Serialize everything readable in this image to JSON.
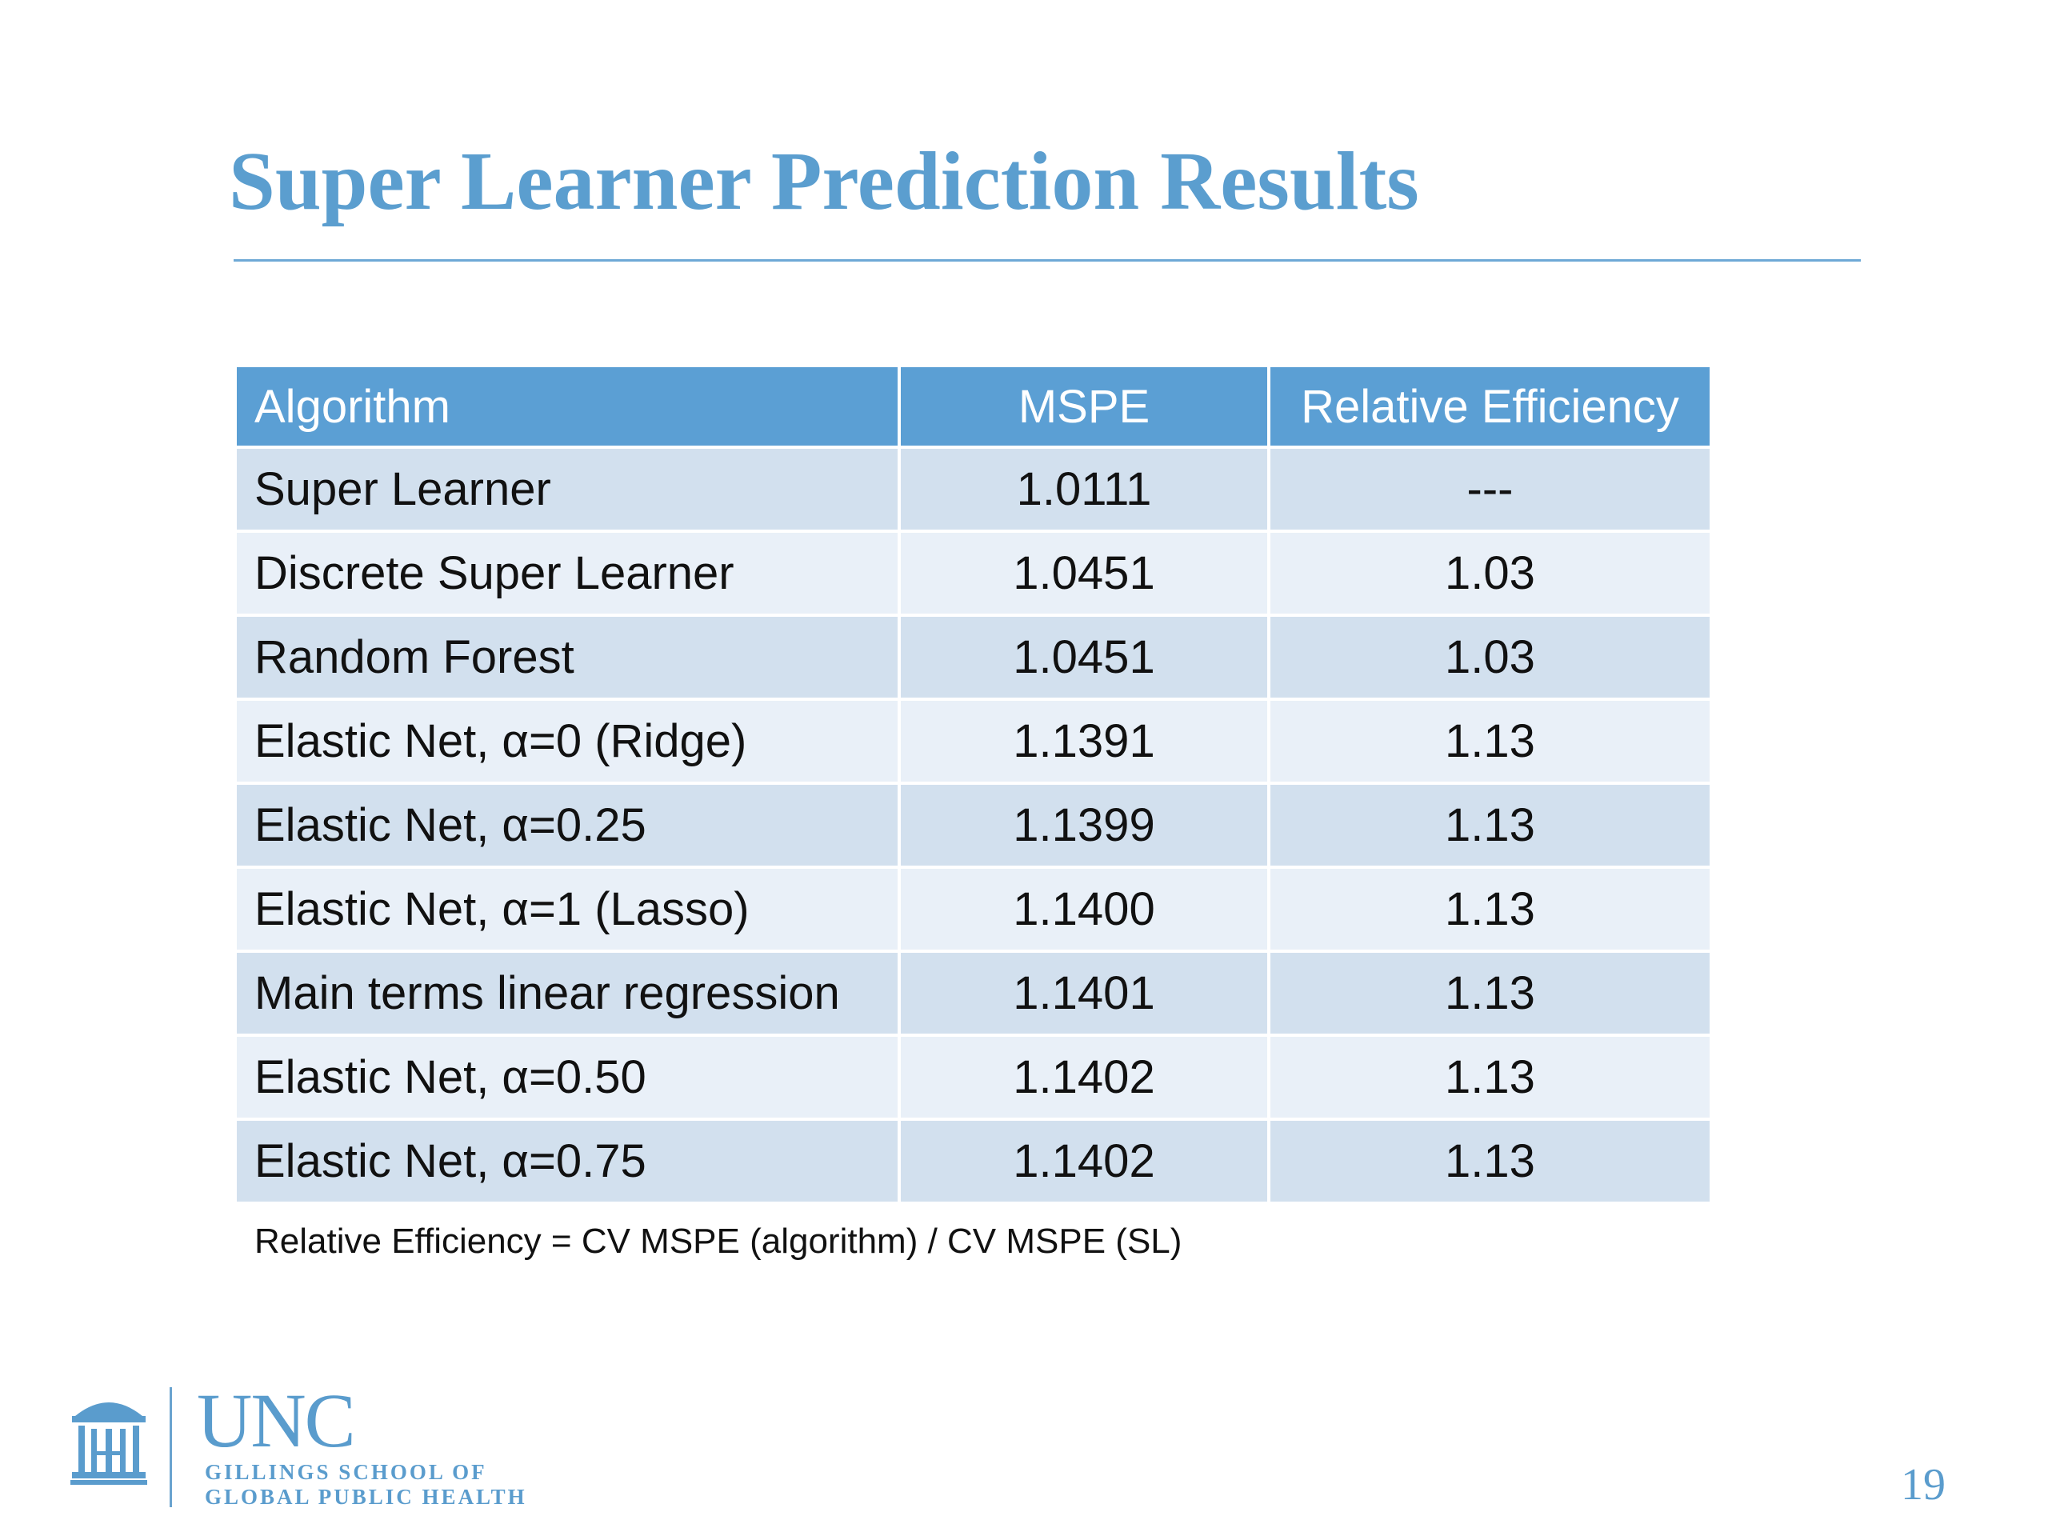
{
  "slide": {
    "title": "Super Learner Prediction Results",
    "page_number": "19",
    "footnote": "Relative Efficiency = CV MSPE (algorithm) / CV MSPE (SL)"
  },
  "table": {
    "headers": [
      "Algorithm",
      "MSPE",
      "Relative Efficiency"
    ],
    "rows": [
      [
        "Super Learner",
        "1.0111",
        "---"
      ],
      [
        "Discrete Super Learner",
        "1.0451",
        "1.03"
      ],
      [
        "Random Forest",
        "1.0451",
        "1.03"
      ],
      [
        "Elastic Net, α=0 (Ridge)",
        "1.1391",
        "1.13"
      ],
      [
        "Elastic Net, α=0.25",
        "1.1399",
        "1.13"
      ],
      [
        "Elastic Net, α=1 (Lasso)",
        "1.1400",
        "1.13"
      ],
      [
        "Main terms linear regression",
        "1.1401",
        "1.13"
      ],
      [
        "Elastic Net, α=0.50",
        "1.1402",
        "1.13"
      ],
      [
        "Elastic Net, α=0.75",
        "1.1402",
        "1.13"
      ]
    ]
  },
  "logo": {
    "name": "UNC",
    "school_line1": "GILLINGS SCHOOL OF",
    "school_line2": "GLOBAL PUBLIC HEALTH",
    "icon": "old-well-icon"
  },
  "colors": {
    "title": "#5b9ecf",
    "header_bg": "#5b9fd4",
    "row_odd": "#d2e0ee",
    "row_even": "#e9f0f8"
  }
}
